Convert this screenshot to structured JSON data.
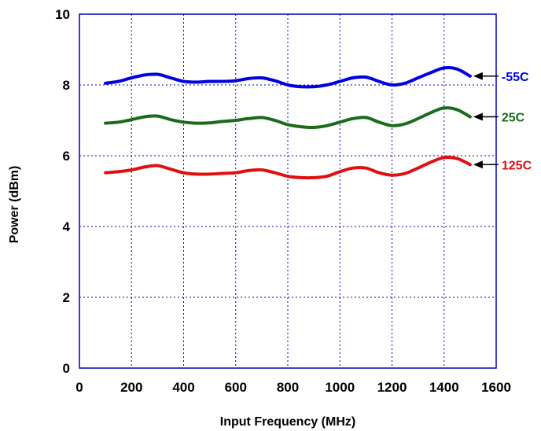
{
  "chart_data": {
    "type": "line",
    "title": "",
    "xlabel": "Input  Frequency (MHz)",
    "ylabel": "Power (dBm)",
    "xlim": [
      0,
      1600
    ],
    "ylim": [
      0,
      10
    ],
    "xticks": [
      0,
      200,
      400,
      600,
      800,
      1000,
      1200,
      1400,
      1600
    ],
    "yticks": [
      0,
      2,
      4,
      6,
      8,
      10
    ],
    "grid": true,
    "legend": "inline-right-with-arrows",
    "x": [
      100,
      150,
      200,
      250,
      300,
      350,
      400,
      450,
      500,
      550,
      600,
      650,
      700,
      750,
      800,
      850,
      900,
      950,
      1000,
      1050,
      1100,
      1150,
      1200,
      1250,
      1300,
      1350,
      1400,
      1450,
      1500
    ],
    "series": [
      {
        "name": "-55C",
        "color": "#0000e0",
        "values": [
          8.05,
          8.1,
          8.2,
          8.28,
          8.3,
          8.2,
          8.1,
          8.08,
          8.1,
          8.1,
          8.12,
          8.18,
          8.2,
          8.12,
          8.0,
          7.95,
          7.95,
          8.0,
          8.1,
          8.2,
          8.22,
          8.1,
          8.0,
          8.05,
          8.2,
          8.35,
          8.48,
          8.45,
          8.25
        ]
      },
      {
        "name": "25C",
        "color": "#1a6b1a",
        "values": [
          6.92,
          6.95,
          7.02,
          7.1,
          7.12,
          7.02,
          6.95,
          6.92,
          6.93,
          6.97,
          7.0,
          7.05,
          7.08,
          7.0,
          6.88,
          6.82,
          6.8,
          6.85,
          6.95,
          7.05,
          7.08,
          6.95,
          6.85,
          6.9,
          7.05,
          7.22,
          7.35,
          7.3,
          7.1
        ]
      },
      {
        "name": "125C",
        "color": "#e01010",
        "values": [
          5.52,
          5.55,
          5.6,
          5.68,
          5.72,
          5.62,
          5.52,
          5.48,
          5.48,
          5.5,
          5.52,
          5.58,
          5.6,
          5.52,
          5.42,
          5.38,
          5.38,
          5.42,
          5.55,
          5.65,
          5.65,
          5.52,
          5.45,
          5.5,
          5.65,
          5.82,
          5.95,
          5.92,
          5.75
        ]
      }
    ]
  }
}
